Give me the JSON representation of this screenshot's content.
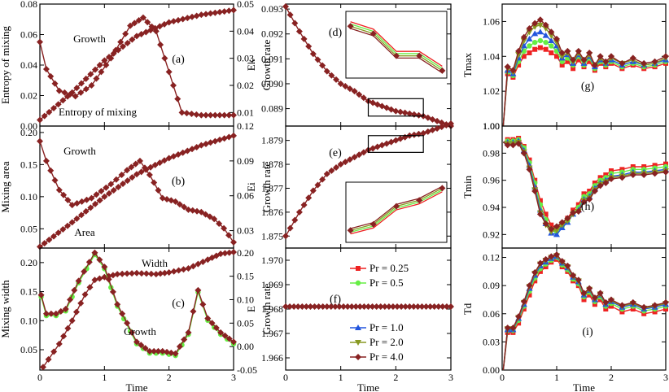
{
  "colors": {
    "pr_0_25": "#ee2222",
    "pr_0_5": "#66ee44",
    "pr_1_0": "#2255dd",
    "pr_2_0": "#889922",
    "pr_4_0": "#882222",
    "axis": "#000000"
  },
  "legend": [
    {
      "key": "pr_0_25",
      "label": "Pr = 0.25",
      "marker": "square"
    },
    {
      "key": "pr_0_5",
      "label": "Pr = 0.5",
      "marker": "circle"
    },
    {
      "key": "pr_1_0",
      "label": "Pr = 1.0",
      "marker": "triangle-up"
    },
    {
      "key": "pr_2_0",
      "label": "Pr = 2.0",
      "marker": "triangle-down"
    },
    {
      "key": "pr_4_0",
      "label": "Pr = 4.0",
      "marker": "diamond"
    }
  ],
  "chart_data": [
    {
      "id": "a",
      "type": "line",
      "panel_label": "(a)",
      "xlabel": "",
      "ylabel": "Entropy of mixing",
      "ylabel_right": "Growth rate",
      "xlim": [
        0,
        3
      ],
      "ylim": [
        0,
        0.08
      ],
      "ylim_right": [
        0.005,
        0.05
      ],
      "xticks": [
        "0",
        "1",
        "2",
        "3"
      ],
      "yticks": [
        "0.00",
        "0.02",
        "0.04",
        "0.06",
        "0.08"
      ],
      "yticks_right": [
        "0.01",
        "0.02",
        "0.03",
        "0.04",
        "0.05"
      ],
      "annotations": [
        "Growth",
        "Entropy of mixing"
      ],
      "series": [
        {
          "axis": "left",
          "x": [
            0,
            0.5,
            1,
            1.5,
            2,
            2.5,
            3
          ],
          "y": [
            0.004,
            0.022,
            0.043,
            0.059,
            0.068,
            0.073,
            0.076
          ]
        },
        {
          "axis": "right",
          "x": [
            0,
            0.1,
            0.3,
            0.55,
            0.8,
            1.1,
            1.4,
            1.6,
            1.8,
            2.0,
            2.2,
            2.5,
            3
          ],
          "y": [
            0.036,
            0.026,
            0.018,
            0.016,
            0.02,
            0.03,
            0.042,
            0.045,
            0.04,
            0.025,
            0.01,
            0.009,
            0.009
          ]
        }
      ]
    },
    {
      "id": "b",
      "type": "line",
      "panel_label": "(b)",
      "xlabel": "",
      "ylabel": "Mixing area",
      "ylabel_right": "Growth rate",
      "xlim": [
        0,
        3
      ],
      "ylim": [
        0.02,
        0.21
      ],
      "ylim_right": [
        0.015,
        0.12
      ],
      "xticks": [
        "0",
        "1",
        "2",
        "3"
      ],
      "yticks": [
        "0.05",
        "0.10",
        "0.15",
        "0.20"
      ],
      "yticks_right": [
        "0.03",
        "0.06",
        "0.09",
        "0.12"
      ],
      "annotations": [
        "Growth",
        "Area"
      ],
      "series": [
        {
          "axis": "left",
          "x": [
            0,
            0.5,
            1,
            1.5,
            2,
            2.5,
            3
          ],
          "y": [
            0.022,
            0.06,
            0.1,
            0.135,
            0.16,
            0.18,
            0.195
          ]
        },
        {
          "axis": "right",
          "x": [
            0,
            0.1,
            0.3,
            0.5,
            0.8,
            1.1,
            1.35,
            1.55,
            1.7,
            1.9,
            2.1,
            2.3,
            2.5,
            2.7,
            2.85,
            3
          ],
          "y": [
            0.107,
            0.09,
            0.065,
            0.052,
            0.058,
            0.07,
            0.082,
            0.09,
            0.078,
            0.058,
            0.055,
            0.048,
            0.046,
            0.04,
            0.032,
            0.02
          ]
        }
      ]
    },
    {
      "id": "c",
      "type": "line",
      "panel_label": "(c)",
      "xlabel": "Time",
      "ylabel": "Mixing width",
      "ylabel_right": "Growth rate",
      "xlim": [
        0,
        3
      ],
      "ylim": [
        0.015,
        0.225
      ],
      "ylim_right": [
        -0.05,
        0.21
      ],
      "xticks": [
        "0",
        "1",
        "2",
        "3"
      ],
      "yticks": [
        "0.05",
        "0.10",
        "0.15",
        "0.20"
      ],
      "yticks_right": [
        "-0.05",
        "0.00",
        "0.05",
        "0.10",
        "0.15",
        "0.20"
      ],
      "annotations": [
        "Width",
        "Growth"
      ],
      "series": [
        {
          "axis": "left",
          "x": [
            0.05,
            0.3,
            0.5,
            0.7,
            0.85,
            1.0,
            1.2,
            1.5,
            1.8,
            2.0,
            2.3,
            2.6,
            2.8,
            3.0
          ],
          "y": [
            0.02,
            0.06,
            0.1,
            0.145,
            0.17,
            0.175,
            0.18,
            0.182,
            0.18,
            0.183,
            0.19,
            0.205,
            0.215,
            0.218
          ]
        },
        {
          "axis": "right",
          "x": [
            0.02,
            0.1,
            0.25,
            0.4,
            0.6,
            0.85,
            1.0,
            1.2,
            1.5,
            1.7,
            1.9,
            2.1,
            2.3,
            2.45,
            2.6,
            2.8,
            3.0
          ],
          "y": [
            0.11,
            0.07,
            0.07,
            0.08,
            0.14,
            0.2,
            0.17,
            0.09,
            0.01,
            -0.01,
            -0.01,
            -0.015,
            0.03,
            0.12,
            0.06,
            0.03,
            0.01
          ]
        }
      ]
    },
    {
      "id": "d",
      "type": "line",
      "panel_label": "(d)",
      "xlabel": "",
      "ylabel": "Ek",
      "xlim": [
        0,
        3
      ],
      "ylim": [
        0.0883,
        0.0932
      ],
      "xticks": [
        "0",
        "1",
        "2",
        "3"
      ],
      "yticks": [
        "0.089",
        "0.090",
        "0.091",
        "0.092",
        "0.093"
      ],
      "series": [
        {
          "x": [
            0,
            0.25,
            0.5,
            0.75,
            1.0,
            1.25,
            1.5,
            1.75,
            2.0,
            2.25,
            2.5,
            2.75,
            3.0
          ],
          "y": [
            0.0931,
            0.0921,
            0.0912,
            0.0905,
            0.09,
            0.0897,
            0.0893,
            0.0891,
            0.0889,
            0.0888,
            0.0887,
            0.0885,
            0.0883
          ]
        }
      ]
    },
    {
      "id": "e",
      "type": "line",
      "panel_label": "(e)",
      "xlabel": "",
      "ylabel": "Ei",
      "xlim": [
        0,
        3
      ],
      "ylim": [
        1.8745,
        1.8796
      ],
      "xticks": [
        "0",
        "1",
        "2",
        "3"
      ],
      "yticks": [
        "1.875",
        "1.876",
        "1.877",
        "1.878",
        "1.879"
      ],
      "series": [
        {
          "x": [
            0,
            0.25,
            0.5,
            0.75,
            1.0,
            1.25,
            1.5,
            1.75,
            2.0,
            2.25,
            2.5,
            2.75,
            3.0
          ],
          "y": [
            1.875,
            1.876,
            1.8769,
            1.8776,
            1.878,
            1.8783,
            1.8786,
            1.8788,
            1.879,
            1.8792,
            1.8793,
            1.8795,
            1.8797
          ]
        }
      ]
    },
    {
      "id": "f",
      "type": "line",
      "panel_label": "(f)",
      "xlabel": "Time",
      "ylabel": "E",
      "xlim": [
        0,
        3
      ],
      "ylim": [
        1.9655,
        1.9705
      ],
      "xticks": [
        "0",
        "1",
        "2",
        "3"
      ],
      "yticks": [
        "1.966",
        "1.967",
        "1.968",
        "1.969",
        "1.970"
      ],
      "series": [
        {
          "x": [
            0,
            3
          ],
          "y": [
            1.9681,
            1.9681
          ]
        }
      ]
    },
    {
      "id": "g",
      "type": "line",
      "panel_label": "(g)",
      "xlabel": "",
      "ylabel": "Tmax",
      "xlim": [
        0,
        3
      ],
      "ylim": [
        1.0,
        1.07
      ],
      "xticks": [
        "0",
        "1",
        "2",
        "3"
      ],
      "yticks": [
        "1.00",
        "1.02",
        "1.04",
        "1.06"
      ],
      "x": [
        0.02,
        0.1,
        0.2,
        0.3,
        0.4,
        0.5,
        0.6,
        0.7,
        0.8,
        0.9,
        1.0,
        1.1,
        1.2,
        1.3,
        1.4,
        1.5,
        1.6,
        1.7,
        1.8,
        1.9,
        2.0,
        2.2,
        2.4,
        2.6,
        2.8,
        3.0
      ],
      "series": [
        {
          "key": "pr_0_25",
          "y": [
            1.0,
            1.03,
            1.028,
            1.035,
            1.04,
            1.042,
            1.044,
            1.045,
            1.044,
            1.042,
            1.04,
            1.035,
            1.037,
            1.033,
            1.038,
            1.034,
            1.037,
            1.032,
            1.036,
            1.034,
            1.036,
            1.033,
            1.035,
            1.033,
            1.034,
            1.036
          ]
        },
        {
          "key": "pr_0_5",
          "y": [
            1.0,
            1.031,
            1.029,
            1.037,
            1.043,
            1.046,
            1.048,
            1.049,
            1.048,
            1.046,
            1.043,
            1.037,
            1.039,
            1.035,
            1.04,
            1.035,
            1.039,
            1.033,
            1.037,
            1.035,
            1.037,
            1.034,
            1.036,
            1.034,
            1.035,
            1.037
          ]
        },
        {
          "key": "pr_1_0",
          "y": [
            1.0,
            1.032,
            1.03,
            1.039,
            1.046,
            1.05,
            1.053,
            1.054,
            1.052,
            1.049,
            1.046,
            1.039,
            1.041,
            1.036,
            1.041,
            1.036,
            1.04,
            1.034,
            1.038,
            1.036,
            1.038,
            1.035,
            1.037,
            1.035,
            1.036,
            1.038
          ]
        },
        {
          "key": "pr_2_0",
          "y": [
            1.0,
            1.033,
            1.031,
            1.041,
            1.049,
            1.054,
            1.057,
            1.058,
            1.056,
            1.052,
            1.048,
            1.04,
            1.042,
            1.037,
            1.042,
            1.037,
            1.041,
            1.035,
            1.039,
            1.036,
            1.039,
            1.036,
            1.038,
            1.035,
            1.036,
            1.039
          ]
        },
        {
          "key": "pr_4_0",
          "y": [
            1.0,
            1.034,
            1.032,
            1.043,
            1.051,
            1.056,
            1.059,
            1.061,
            1.058,
            1.054,
            1.05,
            1.042,
            1.043,
            1.038,
            1.043,
            1.038,
            1.042,
            1.035,
            1.04,
            1.037,
            1.04,
            1.036,
            1.039,
            1.036,
            1.037,
            1.04
          ]
        }
      ]
    },
    {
      "id": "h",
      "type": "line",
      "panel_label": "(h)",
      "xlabel": "",
      "ylabel": "Tmin",
      "xlim": [
        0,
        3
      ],
      "ylim": [
        0.91,
        1.0
      ],
      "xticks": [
        "0",
        "1",
        "2",
        "3"
      ],
      "yticks": [
        "0.92",
        "0.94",
        "0.96",
        "0.98",
        "1.00"
      ],
      "x": [
        0.02,
        0.1,
        0.2,
        0.3,
        0.4,
        0.5,
        0.6,
        0.7,
        0.8,
        0.9,
        1.0,
        1.1,
        1.2,
        1.3,
        1.4,
        1.5,
        1.6,
        1.7,
        1.8,
        1.9,
        2.0,
        2.2,
        2.4,
        2.6,
        2.8,
        3.0
      ],
      "series": [
        {
          "key": "pr_0_25",
          "y": [
            0.988,
            0.99,
            0.99,
            0.991,
            0.985,
            0.975,
            0.96,
            0.945,
            0.935,
            0.927,
            0.925,
            0.928,
            0.932,
            0.938,
            0.942,
            0.95,
            0.952,
            0.958,
            0.962,
            0.964,
            0.967,
            0.968,
            0.97,
            0.97,
            0.971,
            0.972
          ]
        },
        {
          "key": "pr_0_5",
          "y": [
            0.988,
            0.989,
            0.989,
            0.99,
            0.984,
            0.973,
            0.958,
            0.942,
            0.931,
            0.924,
            0.922,
            0.926,
            0.93,
            0.936,
            0.94,
            0.948,
            0.95,
            0.956,
            0.96,
            0.962,
            0.965,
            0.966,
            0.968,
            0.968,
            0.969,
            0.97
          ]
        },
        {
          "key": "pr_1_0",
          "y": [
            0.988,
            0.988,
            0.988,
            0.989,
            0.982,
            0.971,
            0.955,
            0.938,
            0.928,
            0.921,
            0.92,
            0.925,
            0.929,
            0.935,
            0.938,
            0.946,
            0.948,
            0.954,
            0.958,
            0.96,
            0.963,
            0.964,
            0.966,
            0.966,
            0.967,
            0.968
          ]
        },
        {
          "key": "pr_2_0",
          "y": [
            0.988,
            0.987,
            0.987,
            0.988,
            0.981,
            0.969,
            0.953,
            0.936,
            0.927,
            0.922,
            0.923,
            0.927,
            0.93,
            0.935,
            0.937,
            0.945,
            0.947,
            0.953,
            0.957,
            0.959,
            0.962,
            0.963,
            0.965,
            0.965,
            0.966,
            0.967
          ]
        },
        {
          "key": "pr_4_0",
          "y": [
            0.988,
            0.986,
            0.986,
            0.987,
            0.98,
            0.968,
            0.952,
            0.935,
            0.928,
            0.924,
            0.926,
            0.929,
            0.932,
            0.936,
            0.937,
            0.944,
            0.946,
            0.952,
            0.956,
            0.958,
            0.961,
            0.962,
            0.964,
            0.964,
            0.965,
            0.966
          ]
        }
      ]
    },
    {
      "id": "i",
      "type": "line",
      "panel_label": "(i)",
      "xlabel": "Time",
      "ylabel": "Td",
      "xlim": [
        0,
        3
      ],
      "ylim": [
        0.0,
        0.13
      ],
      "xticks": [
        "0",
        "1",
        "2",
        "3"
      ],
      "yticks": [
        "0.00",
        "0.03",
        "0.06",
        "0.09",
        "0.12"
      ],
      "x": [
        0.02,
        0.1,
        0.2,
        0.3,
        0.4,
        0.5,
        0.6,
        0.7,
        0.8,
        0.9,
        1.0,
        1.1,
        1.2,
        1.3,
        1.4,
        1.5,
        1.6,
        1.7,
        1.8,
        1.9,
        2.0,
        2.2,
        2.4,
        2.6,
        2.8,
        3.0
      ],
      "series": [
        {
          "key": "pr_0_25",
          "y": [
            0.0,
            0.04,
            0.04,
            0.05,
            0.065,
            0.08,
            0.095,
            0.105,
            0.11,
            0.115,
            0.118,
            0.11,
            0.105,
            0.095,
            0.09,
            0.075,
            0.08,
            0.07,
            0.075,
            0.065,
            0.068,
            0.062,
            0.065,
            0.06,
            0.062,
            0.065
          ]
        },
        {
          "key": "pr_0_5",
          "y": [
            0.0,
            0.042,
            0.042,
            0.053,
            0.068,
            0.084,
            0.098,
            0.108,
            0.113,
            0.117,
            0.12,
            0.112,
            0.107,
            0.097,
            0.092,
            0.078,
            0.083,
            0.073,
            0.078,
            0.068,
            0.071,
            0.065,
            0.068,
            0.063,
            0.065,
            0.068
          ]
        },
        {
          "key": "pr_1_0",
          "y": [
            0.0,
            0.043,
            0.043,
            0.055,
            0.07,
            0.087,
            0.101,
            0.111,
            0.115,
            0.119,
            0.121,
            0.114,
            0.109,
            0.099,
            0.094,
            0.08,
            0.085,
            0.075,
            0.08,
            0.07,
            0.073,
            0.067,
            0.07,
            0.065,
            0.067,
            0.07
          ]
        },
        {
          "key": "pr_2_0",
          "y": [
            0.0,
            0.044,
            0.044,
            0.056,
            0.072,
            0.089,
            0.103,
            0.113,
            0.117,
            0.12,
            0.122,
            0.115,
            0.11,
            0.1,
            0.095,
            0.081,
            0.086,
            0.076,
            0.081,
            0.071,
            0.074,
            0.068,
            0.071,
            0.066,
            0.068,
            0.071
          ]
        },
        {
          "key": "pr_4_0",
          "y": [
            0.0,
            0.045,
            0.045,
            0.057,
            0.073,
            0.09,
            0.104,
            0.114,
            0.118,
            0.121,
            0.123,
            0.116,
            0.111,
            0.101,
            0.096,
            0.082,
            0.087,
            0.077,
            0.082,
            0.072,
            0.075,
            0.069,
            0.072,
            0.067,
            0.069,
            0.072
          ]
        }
      ]
    }
  ]
}
